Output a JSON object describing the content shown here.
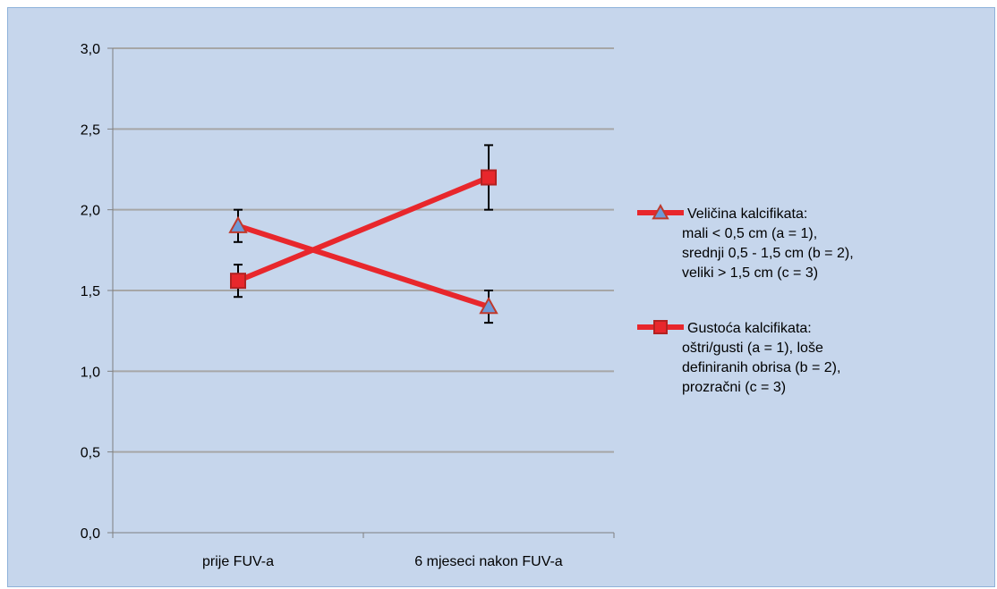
{
  "chart_data": {
    "type": "line",
    "title": "",
    "xlabel": "",
    "ylabel": "",
    "categories": [
      "prije FUV-a",
      "6 mjeseci nakon FUV-a"
    ],
    "ylim": [
      0,
      3
    ],
    "yticks": [
      "0,0",
      "0,5",
      "1,0",
      "1,5",
      "2,0",
      "2,5",
      "3,0"
    ],
    "grid": true,
    "legend_position": "right",
    "series": [
      {
        "name_lines": [
          "Veličina kalcifikata:",
          "mali < 0,5 cm (a = 1),",
          "srednji 0,5 - 1,5 cm (b = 2),",
          "veliki > 1,5 cm (c = 3)"
        ],
        "values": [
          1.9,
          1.4
        ],
        "error": [
          0.1,
          0.1
        ],
        "marker": "triangle",
        "line_color": "#e8272c",
        "marker_fill": "#6f9ad6",
        "marker_edge": "#c0392b"
      },
      {
        "name_lines": [
          "Gustoća kalcifikata:",
          "oštri/gusti (a = 1),  loše",
          "definiranih obrisa (b = 2),",
          "prozračni (c = 3)"
        ],
        "values": [
          1.56,
          2.2
        ],
        "error": [
          0.1,
          0.2
        ],
        "marker": "square",
        "line_color": "#e8272c",
        "marker_fill": "#e8272c",
        "marker_edge": "#b22222"
      }
    ]
  }
}
